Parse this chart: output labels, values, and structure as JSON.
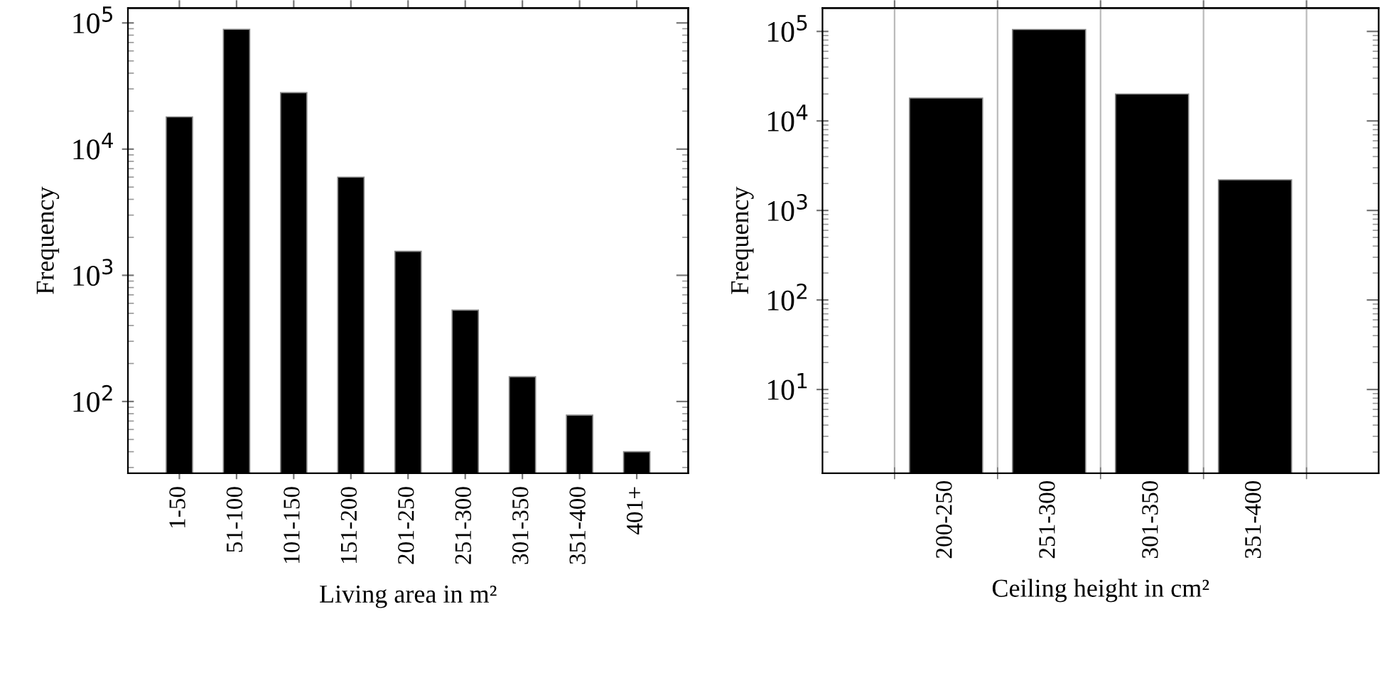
{
  "chart_data": [
    {
      "type": "bar",
      "xlabel": "Living area in m²",
      "ylabel": "Frequency",
      "color": "#000000",
      "log": "y",
      "grid": false,
      "categories": [
        "1-50",
        "51-100",
        "101-150",
        "151-200",
        "201-250",
        "251-300",
        "301-350",
        "351-400",
        "401+"
      ],
      "values": [
        18000,
        89000,
        28000,
        6000,
        1550,
        530,
        157,
        78,
        40
      ],
      "ylim": [
        27,
        131000
      ],
      "yticks": [
        {
          "value": 100,
          "label": "10$^{2}$"
        },
        {
          "value": 1000,
          "label": "10$^{3}$"
        },
        {
          "value": 10000,
          "label": "10$^{4}$"
        },
        {
          "value": 100000,
          "label": "10$^{5}$"
        }
      ]
    },
    {
      "type": "bar",
      "xlabel": "Ceiling height in cm²",
      "ylabel": "Frequency",
      "color": "#000000",
      "log": "y",
      "grid": "x",
      "categories": [
        "200-250",
        "251-300",
        "301-350",
        "351-400"
      ],
      "values": [
        18000,
        105000,
        20000,
        2200
      ],
      "ylim": [
        1.16,
        182000
      ],
      "yticks": [
        {
          "value": 10,
          "label": "10$^{1}$"
        },
        {
          "value": 100,
          "label": "10$^{2}$"
        },
        {
          "value": 1000,
          "label": "10$^{3}$"
        },
        {
          "value": 10000,
          "label": "10$^{4}$"
        },
        {
          "value": 100000,
          "label": "10$^{5}$"
        }
      ]
    }
  ]
}
